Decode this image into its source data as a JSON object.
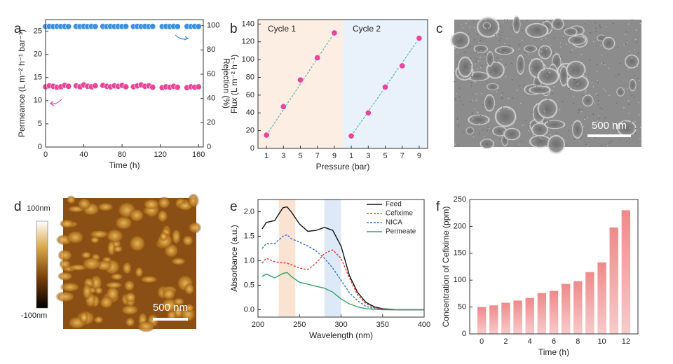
{
  "chart_data": [
    {
      "type": "scatter",
      "panel_label": "a",
      "xlabel": "Time (h)",
      "ylabel": "Permeance (L m⁻² h⁻¹ bar⁻¹)",
      "y2label": "Rejection (%)",
      "x": [
        0,
        4,
        8,
        12,
        16,
        20,
        24,
        32,
        36,
        40,
        44,
        48,
        52,
        60,
        64,
        68,
        72,
        76,
        80,
        84,
        92,
        96,
        100,
        104,
        108,
        112,
        122,
        126,
        130,
        134,
        138,
        148,
        152,
        156,
        160
      ],
      "series": [
        {
          "color": "#e8449a",
          "values": [
            13.0,
            13.2,
            13.1,
            12.9,
            13.0,
            13.3,
            13.1,
            13.2,
            13.0,
            13.4,
            13.1,
            13.0,
            13.2,
            13.3,
            13.1,
            13.0,
            13.2,
            13.1,
            13.3,
            13.0,
            13.0,
            13.2,
            13.4,
            13.1,
            13.2,
            12.9,
            12.8,
            13.0,
            12.9,
            13.1,
            12.9,
            12.8,
            13.0,
            12.9,
            13.0
          ]
        },
        {
          "color": "#3b8fe0",
          "axis": "y2",
          "values": [
            99.3,
            99.4,
            99.3,
            99.4,
            99.3,
            99.4,
            99.3,
            99.4,
            99.3,
            99.4,
            99.3,
            99.4,
            99.3,
            99.4,
            99.3,
            99.4,
            99.3,
            99.4,
            99.3,
            99.4,
            99.3,
            99.4,
            99.3,
            99.4,
            99.3,
            99.4,
            99.3,
            99.4,
            99.3,
            99.4,
            99.3,
            99.4,
            99.3,
            99.4,
            99.3
          ]
        }
      ],
      "xlim": [
        0,
        165
      ],
      "xticks": [
        0,
        40,
        80,
        120,
        160
      ],
      "ylim": [
        0,
        27.5
      ],
      "yticks": [
        0,
        5,
        10,
        15,
        20,
        25
      ],
      "y2lim": [
        0,
        105
      ],
      "y2ticks": [
        0,
        20,
        40,
        60,
        80,
        100
      ]
    },
    {
      "type": "scatter",
      "panel_label": "b",
      "xlabel": "Pressure (bar)",
      "ylabel": "Flux (L m⁻² h⁻¹)",
      "categories": [
        "1",
        "3",
        "5",
        "7",
        "9",
        "1",
        "3",
        "5",
        "7",
        "9"
      ],
      "regions": [
        {
          "label": "Cycle 1",
          "color": "#fdeee4"
        },
        {
          "label": "Cycle 2",
          "color": "#e9f1fb"
        }
      ],
      "series": [
        {
          "color": "#e8449a",
          "values": [
            15,
            47,
            77,
            102,
            130,
            14,
            40,
            69,
            93,
            124
          ]
        }
      ],
      "ylim": [
        0,
        145
      ],
      "yticks": [
        0,
        20,
        40,
        60,
        80,
        100,
        120,
        140
      ]
    },
    {
      "type": "line",
      "panel_label": "e",
      "xlabel": "Wavelength (nm)",
      "ylabel": "Absorbance (a.u.)",
      "legend": "top-right",
      "bands": [
        {
          "range": [
            225,
            245
          ],
          "color": "#fbe3d3"
        },
        {
          "range": [
            280,
            300
          ],
          "color": "#dde9f6"
        }
      ],
      "x": [
        205,
        210,
        220,
        230,
        235,
        240,
        250,
        260,
        270,
        280,
        290,
        300,
        310,
        320,
        330,
        340,
        350,
        360,
        370,
        380,
        390,
        400
      ],
      "series": [
        {
          "name": "Feed",
          "color": "#111111",
          "dashed": false,
          "values": [
            1.65,
            1.78,
            1.82,
            2.08,
            2.1,
            2.0,
            1.75,
            1.6,
            1.62,
            1.68,
            1.62,
            1.3,
            0.7,
            0.35,
            0.15,
            0.06,
            0.02,
            0.01,
            0,
            0,
            0,
            0
          ]
        },
        {
          "name": "Cefixime",
          "color": "#e0403a",
          "dashed": true,
          "values": [
            0.95,
            1.05,
            0.98,
            0.96,
            0.95,
            0.92,
            0.85,
            0.82,
            0.95,
            1.15,
            1.22,
            1.05,
            0.65,
            0.3,
            0.12,
            0.04,
            0.01,
            0,
            0,
            0,
            0,
            0
          ]
        },
        {
          "name": "NICA",
          "color": "#3a6fd8",
          "dashed": true,
          "values": [
            1.25,
            1.35,
            1.35,
            1.5,
            1.53,
            1.45,
            1.38,
            1.3,
            1.2,
            1.05,
            0.85,
            0.6,
            0.35,
            0.18,
            0.07,
            0.02,
            0.01,
            0,
            0,
            0,
            0,
            0
          ]
        },
        {
          "name": "Permeate",
          "color": "#2fa56a",
          "dashed": false,
          "values": [
            0.68,
            0.73,
            0.65,
            0.74,
            0.76,
            0.68,
            0.56,
            0.52,
            0.48,
            0.44,
            0.36,
            0.22,
            0.12,
            0.06,
            0.02,
            0.01,
            0,
            0,
            0,
            0,
            0,
            0
          ]
        }
      ],
      "xlim": [
        200,
        400
      ],
      "xticks": [
        200,
        250,
        300,
        350,
        400
      ],
      "ylim": [
        -0.15,
        2.25
      ],
      "yticks": [
        {
          "value": 0,
          "label": "0.0"
        },
        0.5,
        {
          "value": 1,
          "label": "1.0"
        },
        1.5,
        {
          "value": 2,
          "label": "2.0"
        }
      ]
    },
    {
      "type": "bar",
      "panel_label": "f",
      "xlabel": "Time (h)",
      "ylabel": "Concentration of Cefixime (ppm)",
      "color": "#ee8a8a",
      "x": [
        0,
        1,
        2,
        3,
        4,
        5,
        6,
        7,
        8,
        9,
        10,
        11,
        12
      ],
      "values": [
        50,
        53,
        58,
        62,
        67,
        76,
        80,
        93,
        98,
        115,
        133,
        198,
        230
      ],
      "xlim": [
        -1,
        13
      ],
      "xticks": [
        0,
        2,
        4,
        6,
        8,
        10,
        12
      ],
      "ylim": [
        0,
        250
      ],
      "yticks": [
        0,
        50,
        100,
        150,
        200,
        250
      ]
    }
  ],
  "images": [
    {
      "panel_label": "c",
      "scale_bar": "500 nm"
    },
    {
      "panel_label": "d",
      "scale_bar": "500 nm",
      "colorbar_labels": [
        "100nm",
        "-100nm"
      ]
    }
  ]
}
